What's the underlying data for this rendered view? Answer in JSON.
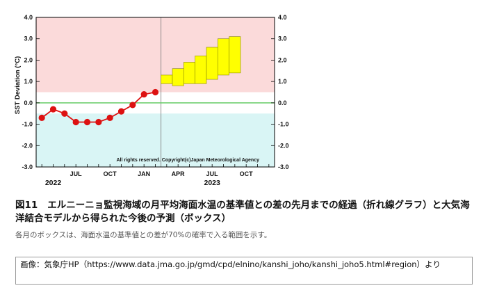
{
  "chart_data": {
    "type": "line",
    "ylabel": "SST Deviation (°C)",
    "ylim": [
      -3.0,
      4.0
    ],
    "yticks": [
      "4.0",
      "3.0",
      "2.0",
      "1.0",
      "0.0",
      "-1.0",
      "-2.0",
      "-3.0"
    ],
    "x_tick_labels": [
      {
        "month": 4,
        "label": "JUL"
      },
      {
        "month": 7,
        "label": "OCT"
      },
      {
        "month": 10,
        "label": "JAN"
      },
      {
        "month": 13,
        "label": "APR"
      },
      {
        "month": 16,
        "label": "JUL"
      },
      {
        "month": 19,
        "label": "OCT"
      }
    ],
    "year_labels": [
      {
        "month": 2,
        "label": "2022"
      },
      {
        "month": 16,
        "label": "2023"
      }
    ],
    "year_divider_month": 11.5,
    "xlim": [
      0.5,
      21.5
    ],
    "bands": [
      {
        "from": 0.5,
        "to": 4.0,
        "color": "#fbdada"
      },
      {
        "from": -0.5,
        "to": 0.5,
        "color": "#ffffff"
      },
      {
        "from": -3.0,
        "to": -0.5,
        "color": "#d9f5f5"
      }
    ],
    "zero_line_color": "#66cc66",
    "series": [
      {
        "color": "#dd1111",
        "points": [
          {
            "month": 1,
            "y": -0.7
          },
          {
            "month": 2,
            "y": -0.3
          },
          {
            "month": 3,
            "y": -0.5
          },
          {
            "month": 4,
            "y": -0.9
          },
          {
            "month": 5,
            "y": -0.9
          },
          {
            "month": 6,
            "y": -0.9
          },
          {
            "month": 7,
            "y": -0.7
          },
          {
            "month": 8,
            "y": -0.4
          },
          {
            "month": 9,
            "y": -0.1
          },
          {
            "month": 10,
            "y": 0.4
          },
          {
            "month": 11,
            "y": 0.5
          }
        ]
      }
    ],
    "forecast_boxes": {
      "color": "#ffff00",
      "edge": "#888800",
      "boxes": [
        {
          "month": 12,
          "low": 0.9,
          "high": 1.3
        },
        {
          "month": 13,
          "low": 0.8,
          "high": 1.6
        },
        {
          "month": 14,
          "low": 0.9,
          "high": 1.9
        },
        {
          "month": 15,
          "low": 0.9,
          "high": 2.2
        },
        {
          "month": 16,
          "low": 1.1,
          "high": 2.6
        },
        {
          "month": 17,
          "low": 1.3,
          "high": 3.0
        },
        {
          "month": 18,
          "low": 1.4,
          "high": 3.1
        }
      ]
    },
    "copyright": "All rights reserved. Copyright(c)Japan Meteorological Agency"
  },
  "caption": {
    "fig_num": "図11",
    "text": "エルニーニョ監視海域の月平均海面水温の基準値との差の先月までの経過（折れ線グラフ）と大気海洋結合モデルから得られた今後の予測（ボックス）"
  },
  "subcaption": "各月のボックスは、海面水温の基準値との差が70%の確率で入る範囲を示す。",
  "source": "画像：気象庁HP（https://www.data.jma.go.jp/gmd/cpd/elnino/kanshi_joho/kanshi_joho5.html#region）より"
}
